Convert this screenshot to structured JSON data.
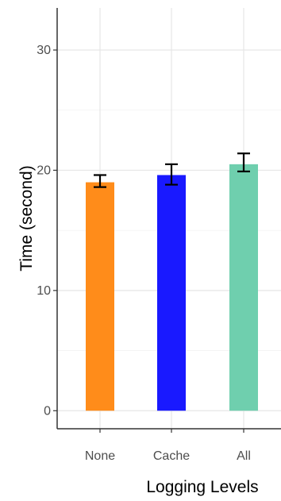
{
  "chart_data": {
    "type": "bar",
    "title": "",
    "xlabel": "Logging Levels",
    "ylabel": "Time (second)",
    "categories": [
      "None",
      "Cache",
      "All"
    ],
    "values": [
      19.0,
      19.6,
      20.5
    ],
    "error_low": [
      18.6,
      18.8,
      19.9
    ],
    "error_high": [
      19.6,
      20.5,
      21.4
    ],
    "colors": [
      "#FF8C1A",
      "#1919FF",
      "#6FCFAE"
    ],
    "ylim": [
      -1.5,
      33.5
    ],
    "yticks": [
      0,
      10,
      20,
      30
    ],
    "ytick_labels": [
      "0",
      "10",
      "20",
      "30"
    ],
    "grid": true,
    "legend": "none"
  }
}
